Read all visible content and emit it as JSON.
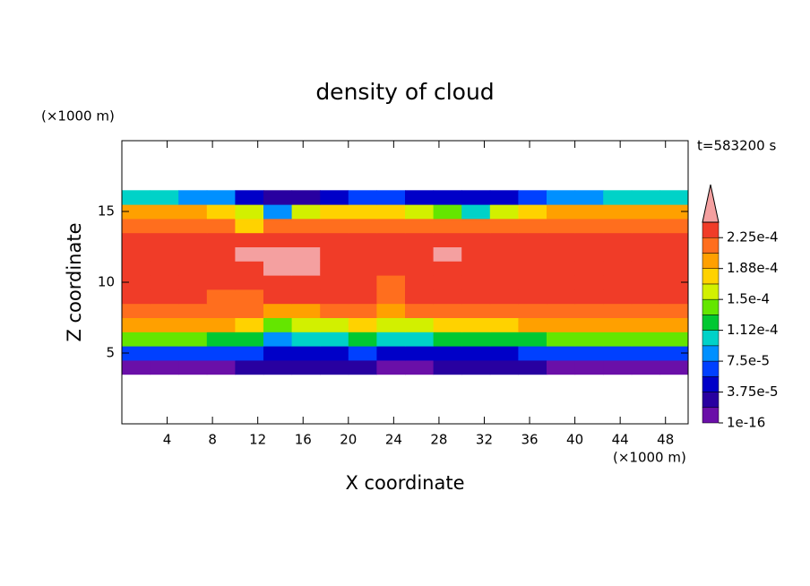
{
  "chart_data": {
    "type": "contour",
    "title": "density of cloud",
    "x_label": "X coordinate",
    "y_label": "Z coordinate",
    "x_unit": "(×1000 m)",
    "y_unit": "(×1000 m)",
    "annotation": "t=583200 s",
    "xlim": [
      0,
      50
    ],
    "ylim": [
      0,
      20
    ],
    "xticks": [
      4,
      8,
      12,
      16,
      20,
      24,
      28,
      32,
      36,
      40,
      44,
      48
    ],
    "yticks": [
      5,
      10,
      15
    ],
    "x": [
      1.25,
      3.75,
      6.25,
      8.75,
      11.25,
      13.75,
      16.25,
      18.75,
      21.25,
      23.75,
      26.25,
      28.75,
      31.25,
      33.75,
      36.25,
      38.75,
      41.25,
      43.75,
      46.25,
      48.75
    ],
    "y": [
      4,
      5,
      6,
      7,
      8,
      9,
      10,
      11,
      12,
      13,
      14,
      15,
      16
    ],
    "z": [
      [
        1.5e-05,
        1.5e-05,
        1.5e-05,
        1.5e-05,
        3e-05,
        3e-05,
        3e-05,
        2.5e-05,
        2.5e-05,
        1.5e-05,
        1.5e-05,
        2e-05,
        2.5e-05,
        2.5e-05,
        2e-05,
        1.5e-05,
        1.5e-05,
        1.5e-05,
        1.5e-05,
        1.5e-05
      ],
      [
        7e-05,
        7e-05,
        7e-05,
        7e-05,
        6e-05,
        5e-05,
        4e-05,
        5e-05,
        6e-05,
        4e-05,
        4e-05,
        5e-05,
        5e-05,
        4e-05,
        6e-05,
        7e-05,
        7e-05,
        7e-05,
        7e-05,
        7e-05
      ],
      [
        0.00014,
        0.00014,
        0.00014,
        0.00013,
        0.00012,
        9e-05,
        0.0001,
        0.00011,
        0.00012,
        0.0001,
        0.00011,
        0.00012,
        0.00013,
        0.00012,
        0.00013,
        0.00014,
        0.00014,
        0.00014,
        0.00014,
        0.00014
      ],
      [
        0.00019,
        0.00019,
        0.00019,
        0.00019,
        0.00018,
        0.00014,
        0.00015,
        0.00016,
        0.00017,
        0.00015,
        0.00016,
        0.00017,
        0.00018,
        0.00018,
        0.00019,
        0.00019,
        0.00019,
        0.00019,
        0.00019,
        0.00019
      ],
      [
        0.000215,
        0.000215,
        0.000215,
        0.000215,
        0.00021,
        0.00019,
        0.0002,
        0.00021,
        0.00021,
        0.0002,
        0.00021,
        0.00021,
        0.000215,
        0.000215,
        0.000215,
        0.000215,
        0.000215,
        0.000215,
        0.000215,
        0.000215
      ],
      [
        0.00023,
        0.00023,
        0.00023,
        0.00022,
        0.00022,
        0.00023,
        0.00023,
        0.00023,
        0.00023,
        0.00022,
        0.00023,
        0.00023,
        0.00023,
        0.00023,
        0.00023,
        0.00023,
        0.00023,
        0.00023,
        0.00023,
        0.00023
      ],
      [
        0.00023,
        0.00023,
        0.00023,
        0.00023,
        0.00023,
        0.00023,
        0.00023,
        0.00023,
        0.00023,
        0.00022,
        0.00023,
        0.00023,
        0.00023,
        0.00023,
        0.00023,
        0.00023,
        0.00023,
        0.00023,
        0.00023,
        0.00023
      ],
      [
        0.00023,
        0.00023,
        0.00023,
        0.00023,
        0.00023,
        0.00025,
        0.00025,
        0.00023,
        0.00023,
        0.00023,
        0.00023,
        0.00023,
        0.00023,
        0.00023,
        0.00023,
        0.00023,
        0.00023,
        0.00023,
        0.00023,
        0.00023
      ],
      [
        0.00023,
        0.00023,
        0.00023,
        0.00023,
        0.00025,
        0.00025,
        0.00025,
        0.00023,
        0.00023,
        0.00023,
        0.00023,
        0.00025,
        0.00023,
        0.00023,
        0.00023,
        0.00023,
        0.00023,
        0.00023,
        0.00023,
        0.00023
      ],
      [
        0.00023,
        0.00023,
        0.00023,
        0.00023,
        0.00023,
        0.00023,
        0.00023,
        0.00023,
        0.00023,
        0.00023,
        0.00023,
        0.00023,
        0.00023,
        0.00023,
        0.00023,
        0.00023,
        0.00023,
        0.00023,
        0.00023,
        0.00023
      ],
      [
        0.00022,
        0.00022,
        0.00022,
        0.00022,
        0.00018,
        0.00022,
        0.00022,
        0.00022,
        0.00022,
        0.00022,
        0.00022,
        0.00022,
        0.00022,
        0.00022,
        0.00022,
        0.00022,
        0.00022,
        0.00022,
        0.00022,
        0.00022
      ],
      [
        0.00019,
        0.00019,
        0.00019,
        0.00018,
        0.00016,
        9e-05,
        0.00015,
        0.00018,
        0.00018,
        0.00017,
        0.00016,
        0.00014,
        0.0001,
        0.00015,
        0.00018,
        0.00019,
        0.00019,
        0.00019,
        0.00019,
        0.00019
      ],
      [
        0.0001,
        0.0001,
        9e-05,
        8e-05,
        4e-05,
        2e-05,
        3e-05,
        5e-05,
        6e-05,
        6e-05,
        5e-05,
        5e-05,
        4e-05,
        5e-05,
        7e-05,
        8e-05,
        9e-05,
        0.0001,
        0.00011,
        0.00011
      ]
    ],
    "levels": [
      1e-16,
      1.875e-05,
      3.75e-05,
      5.625e-05,
      7.5e-05,
      9.375e-05,
      0.0001125,
      0.00013125,
      0.00015,
      0.00016875,
      0.0001875,
      0.00020625,
      0.000225,
      0.00024375
    ],
    "colors": [
      "#6a0fa8",
      "#2800a0",
      "#0000c8",
      "#0040ff",
      "#0090ff",
      "#00d2c8",
      "#00c832",
      "#64e600",
      "#d2f000",
      "#ffd200",
      "#ffa000",
      "#ff6e1e",
      "#f03c28"
    ],
    "extend_color": "#f4a0a0",
    "colorbar_ticks": [
      1e-16,
      {
        "value": 3.75e-05,
        "label": "3.75e-5"
      },
      {
        "value": 7.5e-05,
        "label": "7.5e-5"
      },
      {
        "value": 0.0001125,
        "label": "1.12e-4"
      },
      {
        "value": 0.00015,
        "label": "1.5e-4"
      },
      {
        "value": 0.0001875,
        "label": "1.88e-4"
      },
      {
        "value": 0.000225,
        "label": "2.25e-4"
      }
    ]
  }
}
